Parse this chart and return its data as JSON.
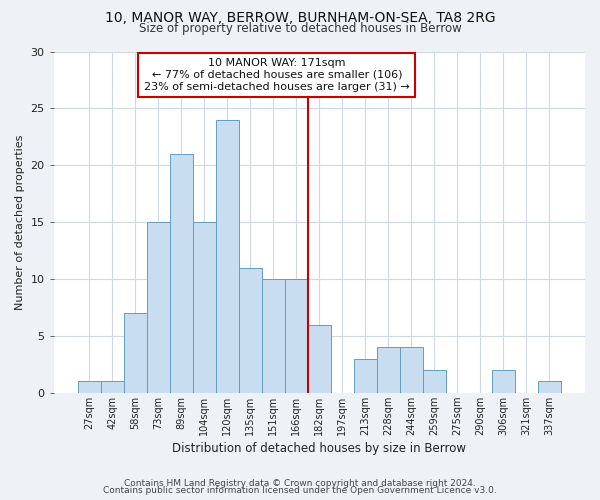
{
  "title1": "10, MANOR WAY, BERROW, BURNHAM-ON-SEA, TA8 2RG",
  "title2": "Size of property relative to detached houses in Berrow",
  "xlabel": "Distribution of detached houses by size in Berrow",
  "ylabel": "Number of detached properties",
  "bar_labels": [
    "27sqm",
    "42sqm",
    "58sqm",
    "73sqm",
    "89sqm",
    "104sqm",
    "120sqm",
    "135sqm",
    "151sqm",
    "166sqm",
    "182sqm",
    "197sqm",
    "213sqm",
    "228sqm",
    "244sqm",
    "259sqm",
    "275sqm",
    "290sqm",
    "306sqm",
    "321sqm",
    "337sqm"
  ],
  "bar_values": [
    1,
    1,
    7,
    15,
    21,
    15,
    24,
    11,
    10,
    10,
    6,
    0,
    3,
    4,
    4,
    2,
    0,
    0,
    2,
    0,
    1
  ],
  "bar_color": "#c9ddf0",
  "bar_edge_color": "#5f9ec4",
  "vline_x": 9.5,
  "vline_color": "#cc0000",
  "annotation_title": "10 MANOR WAY: 171sqm",
  "annotation_line1": "← 77% of detached houses are smaller (106)",
  "annotation_line2": "23% of semi-detached houses are larger (31) →",
  "annotation_box_edge": "#cc0000",
  "ylim": [
    0,
    30
  ],
  "yticks": [
    0,
    5,
    10,
    15,
    20,
    25,
    30
  ],
  "footer1": "Contains HM Land Registry data © Crown copyright and database right 2024.",
  "footer2": "Contains public sector information licensed under the Open Government Licence v3.0.",
  "bg_color": "#eef2f7",
  "plot_bg_color": "#ffffff",
  "grid_color": "#d0d8e4"
}
